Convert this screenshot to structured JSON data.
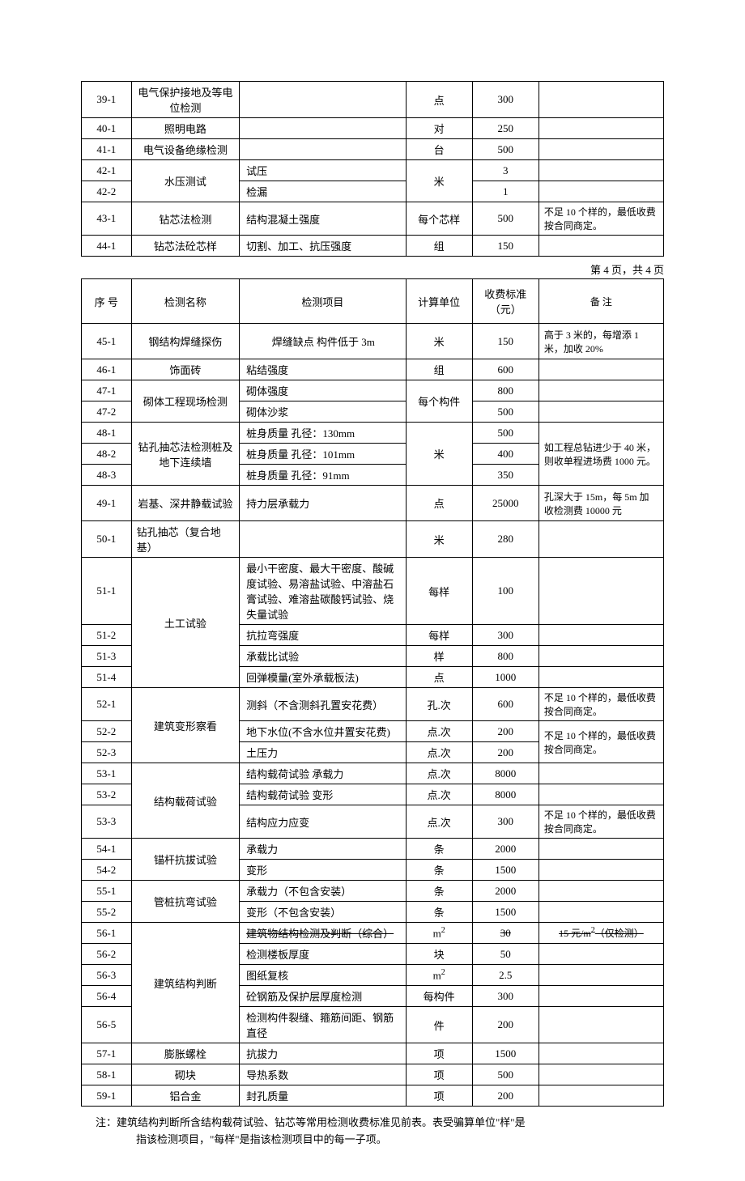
{
  "page_label": "第 4 页，共  4 页",
  "header": {
    "seq": "序 号",
    "name": "检测名称",
    "item": "检测项目",
    "unit": "计算单位",
    "price": "收费标准（元）",
    "note": "备    注"
  },
  "table1": [
    {
      "seq": "39-1",
      "name": "电气保护接地及等电位检测",
      "item": "",
      "unit": "点",
      "price": "300",
      "note": ""
    },
    {
      "seq": "40-1",
      "name": "照明电路",
      "item": "",
      "unit": "对",
      "price": "250",
      "note": ""
    },
    {
      "seq": "41-1",
      "name": "电气设备绝缘检测",
      "item": "",
      "unit": "台",
      "price": "500",
      "note": ""
    },
    {
      "seq": "42-1",
      "name": "水压测试",
      "nameRowspan": 2,
      "item": "试压",
      "unit": "米",
      "unitRowspan": 2,
      "price": "3",
      "note": ""
    },
    {
      "seq": "42-2",
      "item": "检漏",
      "price": "1",
      "note": ""
    },
    {
      "seq": "43-1",
      "name": "钻芯法检测",
      "item": "结构混凝土强度",
      "unit": "每个芯样",
      "price": "500",
      "note": "不足 10 个样的，最低收费按合同商定。"
    },
    {
      "seq": "44-1",
      "name": "钻芯法砼芯样",
      "item": "切割、加工、抗压强度",
      "unit": "组",
      "price": "150",
      "note": ""
    }
  ],
  "table2": [
    {
      "seq": "45-1",
      "name": "钢结构焊缝探伤",
      "item": "焊缝缺点    构件低于 3m",
      "unit": "米",
      "price": "150",
      "note": "高于 3 米的，每增添 1 米，加收 20%",
      "tall": true,
      "itemAlign": "center"
    },
    {
      "seq": "46-1",
      "name": "饰面砖",
      "item": "粘结强度",
      "unit": "组",
      "price": "600",
      "note": ""
    },
    {
      "seq": "47-1",
      "name": "砌体工程现场检测",
      "nameRowspan": 2,
      "item": "砌体强度",
      "unit": "每个构件",
      "unitRowspan": 2,
      "price": "800",
      "note": ""
    },
    {
      "seq": "47-2",
      "item": "砌体沙浆",
      "price": "500",
      "note": ""
    },
    {
      "seq": "48-1",
      "name": "钻孔抽芯法检测桩及地下连续墙",
      "nameRowspan": 3,
      "item": "桩身质量    孔径：130mm",
      "unit": "米",
      "unitRowspan": 3,
      "price": "500",
      "note": "如工程总钻进少于 40 米，则收单程进场费    1000 元。",
      "noteRowspan": 3
    },
    {
      "seq": "48-2",
      "item": "桩身质量    孔径：101mm",
      "price": "400"
    },
    {
      "seq": "48-3",
      "item": "桩身质量    孔径：91mm",
      "price": "350"
    },
    {
      "seq": "49-1",
      "name": "岩基、深井静载试验",
      "item": "持力层承载力",
      "unit": "点",
      "price": "25000",
      "note": "孔深大于 15m，每 5m 加收检测费 10000 元",
      "tall": true
    },
    {
      "seq": "50-1",
      "name": "钻孔抽芯（复合地基）",
      "item": "",
      "unit": "米",
      "price": "280",
      "note": "",
      "nameAlign": "left"
    },
    {
      "seq": "51-1",
      "name": "土工试验",
      "nameRowspan": 4,
      "item": "最小干密度、最大干密度、酸碱度试验、易溶盐试验、中溶盐石膏试验、难溶盐碳酸钙试验、烧失量试验",
      "unit": "每样",
      "price": "100",
      "note": "",
      "tall": true
    },
    {
      "seq": "51-2",
      "item": "抗拉弯强度",
      "unit": "每样",
      "price": "300",
      "note": ""
    },
    {
      "seq": "51-3",
      "item": "承载比试验",
      "unit": "样",
      "price": "800",
      "note": ""
    },
    {
      "seq": "51-4",
      "item": "回弹模量(室外承载板法)",
      "unit": "点",
      "price": "1000",
      "note": ""
    },
    {
      "seq": "52-1",
      "name": "建筑变形察看",
      "nameRowspan": 3,
      "item": "测斜（不含测斜孔置安花费）",
      "unit": "孔.次",
      "price": "600",
      "note": "不足 10 个样的，最低收费按合同商定。"
    },
    {
      "seq": "52-2",
      "item": "地下水位(不含水位井置安花费)",
      "unit": "点.次",
      "price": "200",
      "note": "不足 10 个样的，最低收费按合同商定。",
      "noteRowspan": 2
    },
    {
      "seq": "52-3",
      "item": "土压力",
      "unit": "点.次",
      "price": "200"
    },
    {
      "seq": "53-1",
      "name": "结构载荷试验",
      "nameRowspan": 3,
      "item": "结构载荷试验    承载力",
      "unit": "点.次",
      "price": "8000",
      "note": ""
    },
    {
      "seq": "53-2",
      "item": "结构载荷试验    变形",
      "unit": "点.次",
      "price": "8000",
      "note": ""
    },
    {
      "seq": "53-3",
      "item": "结构应力应变",
      "unit": "点.次",
      "price": "300",
      "note": "不足 10 个样的，最低收费按合同商定。"
    },
    {
      "seq": "54-1",
      "name": "锚杆抗拔试验",
      "nameRowspan": 2,
      "item": "承载力",
      "unit": "条",
      "price": "2000",
      "note": ""
    },
    {
      "seq": "54-2",
      "item": "变形",
      "unit": "条",
      "price": "1500",
      "note": ""
    },
    {
      "seq": "55-1",
      "name": "管桩抗弯试验",
      "nameRowspan": 2,
      "item": "承载力（不包含安装）",
      "unit": "条",
      "price": "2000",
      "note": ""
    },
    {
      "seq": "55-2",
      "item": "变形（不包含安装）",
      "unit": "条",
      "price": "1500",
      "note": ""
    },
    {
      "seq": "56-1",
      "name": "建筑结构判断",
      "nameRowspan": 5,
      "item": "建筑物结构检测及判断（综合）",
      "unit": "m²",
      "price": "30",
      "note": "15 元/m²（仅检测）",
      "strike": true,
      "strikeNote": true,
      "sup": true
    },
    {
      "seq": "56-2",
      "item": "检测楼板厚度",
      "unit": "块",
      "price": "50",
      "note": ""
    },
    {
      "seq": "56-3",
      "item": "图纸复核",
      "unit": "m²",
      "price": "2.5",
      "note": "",
      "sup": true
    },
    {
      "seq": "56-4",
      "item": "砼钢筋及保护层厚度检测",
      "unit": "每构件",
      "price": "300",
      "note": ""
    },
    {
      "seq": "56-5",
      "item": "检测构件裂缝、箍筋间距、钢筋直径",
      "unit": "件",
      "price": "200",
      "note": ""
    },
    {
      "seq": "57-1",
      "name": "膨胀螺栓",
      "item": "抗拔力",
      "unit": "项",
      "price": "1500",
      "note": ""
    },
    {
      "seq": "58-1",
      "name": "砌块",
      "item": "导热系数",
      "unit": "项",
      "price": "500",
      "note": ""
    },
    {
      "seq": "59-1",
      "name": "铝合金",
      "item": "封孔质量",
      "unit": "项",
      "price": "200",
      "note": ""
    }
  ],
  "footnote": {
    "l1": "注：建筑结构判断所含结构载荷试验、钻芯等常用检测收费标准见前表。表受骗算单位\"样\"是",
    "l2": "指该检测项目，\"每样\"是指该检测项目中的每一子项。"
  }
}
